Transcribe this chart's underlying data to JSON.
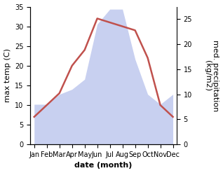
{
  "months": [
    "Jan",
    "Feb",
    "Mar",
    "Apr",
    "May",
    "Jun",
    "Jul",
    "Aug",
    "Sep",
    "Oct",
    "Nov",
    "Dec"
  ],
  "temp": [
    7,
    10,
    13,
    20,
    24,
    32,
    31,
    30,
    29,
    22,
    10,
    7
  ],
  "precip": [
    8,
    8,
    10,
    11,
    13,
    24,
    27,
    27,
    17,
    10,
    8,
    10
  ],
  "temp_color": "#c0514d",
  "precip_fill_color": "#c8d0f0",
  "temp_ylim": [
    0,
    35
  ],
  "precip_ylim": [
    0,
    27.5
  ],
  "temp_yticks": [
    0,
    5,
    10,
    15,
    20,
    25,
    30,
    35
  ],
  "precip_yticks": [
    0,
    5,
    10,
    15,
    20,
    25
  ],
  "ylabel_left": "max temp (C)",
  "ylabel_right": "med. precipitation\n(kg/m2)",
  "xlabel": "date (month)",
  "bg_color": "#ffffff",
  "linewidth": 1.8,
  "xlabel_fontsize": 8,
  "ylabel_fontsize": 8,
  "tick_fontsize": 7
}
